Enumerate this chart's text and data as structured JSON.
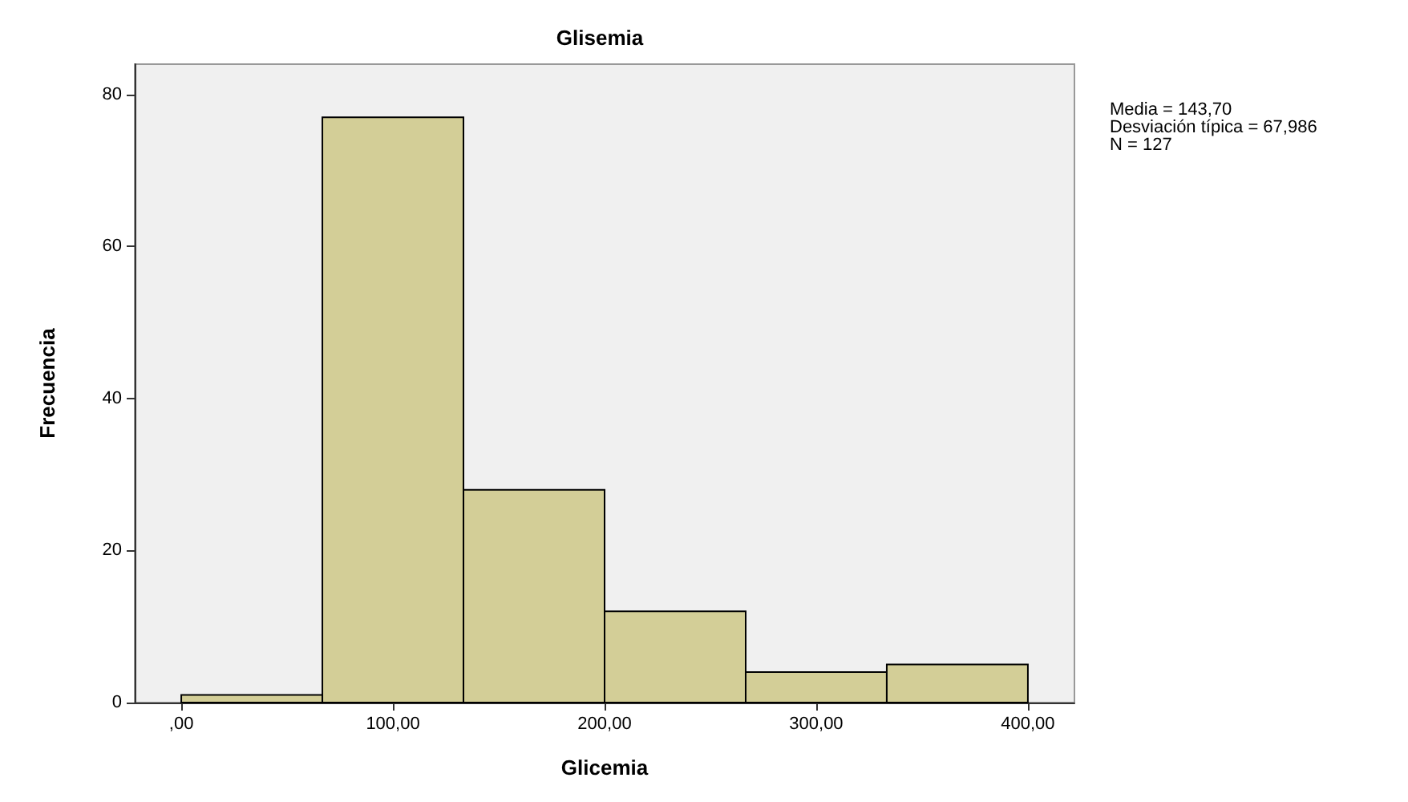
{
  "chart_data": {
    "type": "histogram",
    "title": "Glisemia",
    "xlabel": "Glicemia",
    "ylabel": "Frecuencia",
    "bins": [
      0,
      66.67,
      133.33,
      200,
      266.67,
      333.33,
      400
    ],
    "values": [
      1,
      77,
      28,
      12,
      4,
      5
    ],
    "color": "#d3ce97",
    "xlim": [
      -22,
      422
    ],
    "ylim": [
      0,
      84
    ],
    "xticks": [
      {
        "value": 0,
        "label": ",00"
      },
      {
        "value": 100,
        "label": "100,00"
      },
      {
        "value": 200,
        "label": "200,00"
      },
      {
        "value": 300,
        "label": "300,00"
      },
      {
        "value": 400,
        "label": "400,00"
      }
    ],
    "yticks": [
      0,
      20,
      40,
      60,
      80
    ],
    "annotations": [
      "Media = 143,70",
      "Desviación típica = 67,986",
      "N = 127"
    ],
    "grid": false
  }
}
